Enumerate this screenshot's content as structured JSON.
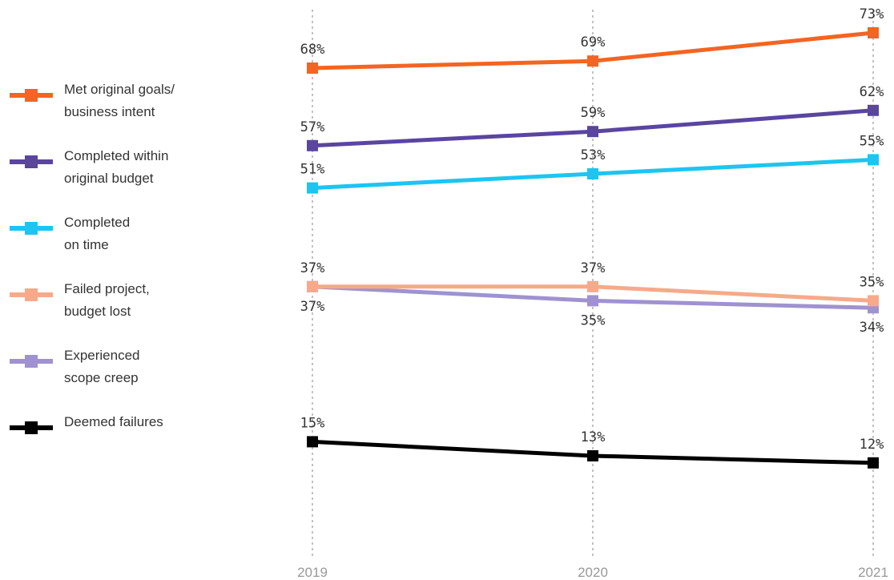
{
  "chart_data": {
    "type": "line",
    "title": "",
    "xlabel": "",
    "ylabel": "",
    "x": [
      "2019",
      "2020",
      "2021"
    ],
    "grid": "vertical dotted lines at each year",
    "legend_placement": "left",
    "series": [
      {
        "name": "Met original goals/\nbusiness intent",
        "color": "#f26522",
        "values": [
          68,
          69,
          73
        ],
        "labels": [
          "68%",
          "69%",
          "73%"
        ],
        "label_pos": [
          "above",
          "above",
          "above"
        ]
      },
      {
        "name": "Completed within\noriginal budget",
        "color": "#5a45a0",
        "values": [
          57,
          59,
          62
        ],
        "labels": [
          "57%",
          "59%",
          "62%"
        ],
        "label_pos": [
          "above",
          "above",
          "above"
        ]
      },
      {
        "name": "Completed\non time",
        "color": "#1cc5f2",
        "values": [
          51,
          53,
          55
        ],
        "labels": [
          "51%",
          "53%",
          "55%"
        ],
        "label_pos": [
          "above",
          "above",
          "above"
        ]
      },
      {
        "name": "Failed project,\nbudget lost",
        "color": "#f8a98a",
        "values": [
          37,
          37,
          35
        ],
        "labels": [
          "37%",
          "37%",
          "35%"
        ],
        "label_pos": [
          "above",
          "above",
          "above"
        ]
      },
      {
        "name": "Experienced\nscope creep",
        "color": "#a092d0",
        "values": [
          37,
          35,
          34
        ],
        "labels": [
          "37%",
          "35%",
          "34%"
        ],
        "label_pos": [
          "below",
          "below",
          "below"
        ]
      },
      {
        "name": "Deemed failures",
        "color": "#000000",
        "values": [
          15,
          13,
          12
        ],
        "labels": [
          "15%",
          "13%",
          "12%"
        ],
        "label_pos": [
          "above",
          "above",
          "above"
        ]
      }
    ]
  }
}
